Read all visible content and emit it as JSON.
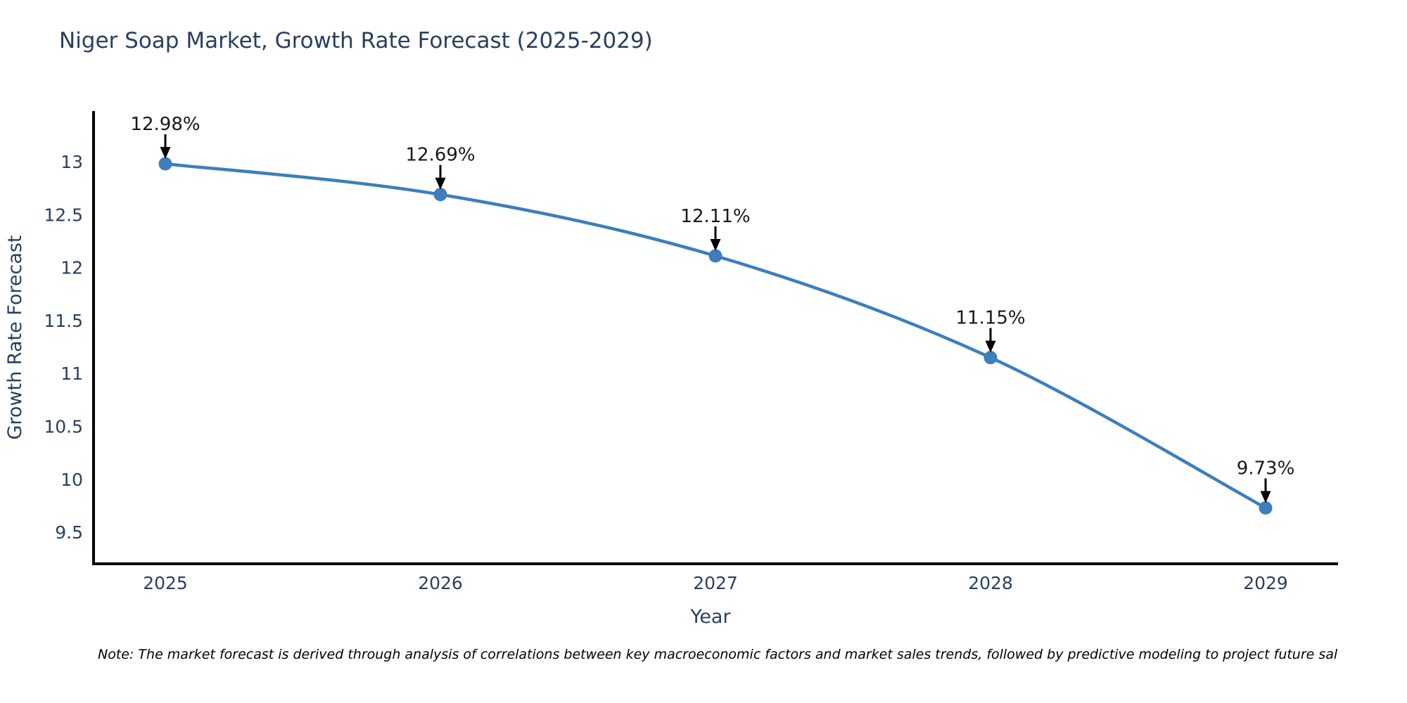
{
  "note": {
    "text": "Note: The market forecast is derived through analysis of correlations between key macroeconomic factors and market sales trends, followed by predictive modeling to project future sal"
  },
  "chart_data": {
    "type": "line",
    "title": "Niger Soap Market, Growth Rate Forecast (2025-2029)",
    "xlabel": "Year",
    "ylabel": "Growth Rate Forecast",
    "categories": [
      "2025",
      "2026",
      "2027",
      "2028",
      "2029"
    ],
    "values": [
      12.98,
      12.69,
      12.11,
      11.15,
      9.73
    ],
    "point_labels": [
      "12.98%",
      "12.69%",
      "12.11%",
      "11.15%",
      "9.73%"
    ],
    "yticks": [
      "13",
      "12.5",
      "12",
      "11.5",
      "11",
      "10.5",
      "10",
      "9.5"
    ],
    "ytick_values": [
      13,
      12.5,
      12,
      11.5,
      11,
      10.5,
      10,
      9.5
    ],
    "ylim": [
      9.12,
      13.48
    ],
    "line_shape": "spline",
    "markers": true,
    "grid": false,
    "legend": "none",
    "annotation_arrow_icon": "down-arrow-icon",
    "colors": {
      "line": "#3d7ebc",
      "marker": "#3d7ebc",
      "axis": "#000000",
      "tick_label": "#2a3f5f",
      "axis_title": "#2a3f5f",
      "chart_title": "#2a3f5f",
      "annotation": "#16181d",
      "note": "#000000",
      "background": "#ffffff"
    }
  }
}
